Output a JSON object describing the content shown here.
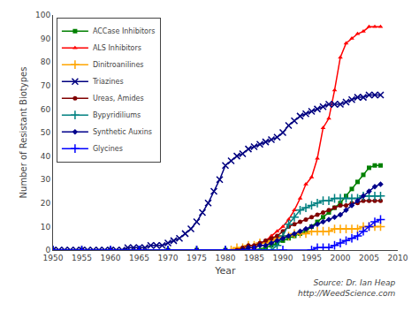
{
  "chart_data": {
    "type": "line",
    "xlabel": "Year",
    "ylabel": "Number of Resistant Biotypes",
    "annotation": "Source: Dr. Ian Heap\nhttp://WeedScience.com",
    "xlim": [
      1950,
      2010
    ],
    "ylim": [
      0,
      100
    ],
    "xticks": [
      1950,
      1955,
      1960,
      1965,
      1970,
      1975,
      1980,
      1985,
      1990,
      1995,
      2000,
      2005,
      2010
    ],
    "yticks": [
      0,
      10,
      20,
      30,
      40,
      50,
      60,
      70,
      80,
      90,
      100
    ],
    "grid": false,
    "legend": "upper left",
    "series": [
      {
        "name": "ACCase Inhibitors",
        "color": "#008000",
        "marker": "square",
        "x": [
          1950,
          1955,
          1960,
          1965,
          1970,
          1975,
          1980,
          1985,
          1987,
          1988,
          1989,
          1990,
          1991,
          1992,
          1993,
          1994,
          1995,
          1996,
          1997,
          1998,
          1999,
          2000,
          2001,
          2002,
          2003,
          2004,
          2005,
          2006,
          2007
        ],
        "values": [
          0,
          0,
          0,
          0,
          0,
          0,
          0,
          0,
          1,
          2,
          3,
          4,
          5,
          6,
          7,
          8,
          10,
          12,
          14,
          16,
          18,
          20,
          23,
          26,
          29,
          32,
          35,
          36,
          36
        ]
      },
      {
        "name": "ALS Inhibitors",
        "color": "#ff0000",
        "marker": "triangle",
        "x": [
          1950,
          1955,
          1960,
          1965,
          1970,
          1975,
          1980,
          1985,
          1986,
          1987,
          1988,
          1989,
          1990,
          1991,
          1992,
          1993,
          1994,
          1995,
          1996,
          1997,
          1998,
          1999,
          2000,
          2001,
          2002,
          2003,
          2004,
          2005,
          2006,
          2007
        ],
        "values": [
          0,
          0,
          0,
          0,
          0,
          0,
          0,
          1,
          2,
          4,
          6,
          8,
          10,
          13,
          17,
          22,
          28,
          31,
          39,
          52,
          56,
          68,
          82,
          88,
          90,
          92,
          93,
          95,
          95,
          95
        ]
      },
      {
        "name": "Dinitroanilines",
        "color": "#ffa500",
        "marker": "plus",
        "x": [
          1950,
          1955,
          1960,
          1965,
          1970,
          1975,
          1980,
          1981,
          1982,
          1983,
          1984,
          1985,
          1986,
          1987,
          1988,
          1989,
          1990,
          1991,
          1992,
          1993,
          1994,
          1995,
          1996,
          1997,
          1998,
          1999,
          2000,
          2001,
          2002,
          2003,
          2004,
          2005,
          2006,
          2007
        ],
        "values": [
          0,
          0,
          0,
          0,
          0,
          0,
          0,
          0,
          1,
          1,
          2,
          2,
          3,
          3,
          4,
          5,
          6,
          6,
          7,
          7,
          7,
          8,
          8,
          8,
          8,
          9,
          9,
          9,
          9,
          9,
          10,
          10,
          10,
          10
        ]
      },
      {
        "name": "Triazines",
        "color": "#000080",
        "marker": "x",
        "x": [
          1950,
          1951,
          1952,
          1953,
          1954,
          1955,
          1956,
          1957,
          1958,
          1959,
          1960,
          1961,
          1962,
          1963,
          1964,
          1965,
          1966,
          1967,
          1968,
          1969,
          1970,
          1971,
          1972,
          1973,
          1974,
          1975,
          1976,
          1977,
          1978,
          1979,
          1980,
          1981,
          1982,
          1983,
          1984,
          1985,
          1986,
          1987,
          1988,
          1989,
          1990,
          1991,
          1992,
          1993,
          1994,
          1995,
          1996,
          1997,
          1998,
          1999,
          2000,
          2001,
          2002,
          2003,
          2004,
          2005,
          2006,
          2007
        ],
        "values": [
          0,
          0,
          0,
          0,
          0,
          0,
          0,
          0,
          0,
          0,
          0,
          0,
          0,
          1,
          1,
          1,
          1,
          2,
          2,
          2,
          3,
          4,
          5,
          7,
          9,
          12,
          16,
          20,
          25,
          30,
          36,
          38,
          40,
          41,
          43,
          44,
          45,
          46,
          47,
          48,
          50,
          53,
          55,
          57,
          58,
          59,
          60,
          61,
          62,
          62,
          62,
          63,
          64,
          65,
          65,
          66,
          66,
          66
        ]
      },
      {
        "name": "Ureas, Amides",
        "color": "#800000",
        "marker": "circle",
        "x": [
          1950,
          1955,
          1960,
          1965,
          1970,
          1975,
          1980,
          1982,
          1983,
          1984,
          1985,
          1986,
          1987,
          1988,
          1989,
          1990,
          1991,
          1992,
          1993,
          1994,
          1995,
          1996,
          1997,
          1998,
          1999,
          2000,
          2001,
          2002,
          2003,
          2004,
          2005,
          2006,
          2007
        ],
        "values": [
          0,
          0,
          0,
          0,
          0,
          0,
          0,
          0,
          1,
          2,
          2,
          3,
          4,
          5,
          6,
          8,
          10,
          11,
          12,
          13,
          14,
          15,
          16,
          17,
          18,
          19,
          19,
          20,
          20,
          21,
          21,
          21,
          21
        ]
      },
      {
        "name": "Bypyridiliums",
        "color": "#008080",
        "marker": "plus",
        "x": [
          1950,
          1955,
          1960,
          1965,
          1970,
          1975,
          1980,
          1985,
          1986,
          1987,
          1988,
          1989,
          1990,
          1991,
          1992,
          1993,
          1994,
          1995,
          1996,
          1997,
          1998,
          1999,
          2000,
          2001,
          2002,
          2003,
          2004,
          2005,
          2006,
          2007
        ],
        "values": [
          0,
          0,
          0,
          0,
          0,
          0,
          0,
          0,
          0,
          0,
          0,
          2,
          6,
          11,
          14,
          17,
          18,
          19,
          20,
          21,
          21,
          22,
          22,
          22,
          22,
          22,
          23,
          23,
          23,
          23
        ]
      },
      {
        "name": "Synthetic Auxins",
        "color": "#00008b",
        "marker": "diamond",
        "x": [
          1950,
          1955,
          1960,
          1965,
          1970,
          1975,
          1980,
          1983,
          1984,
          1985,
          1986,
          1987,
          1988,
          1989,
          1990,
          1991,
          1992,
          1993,
          1994,
          1995,
          1996,
          1997,
          1998,
          1999,
          2000,
          2001,
          2002,
          2003,
          2004,
          2005,
          2006,
          2007
        ],
        "values": [
          0,
          0,
          0,
          0,
          0,
          0,
          0,
          0,
          1,
          1,
          2,
          2,
          3,
          4,
          5,
          6,
          7,
          8,
          9,
          10,
          11,
          12,
          13,
          14,
          15,
          17,
          19,
          21,
          23,
          25,
          27,
          28
        ]
      },
      {
        "name": "Glycines",
        "color": "#0000ff",
        "marker": "plus",
        "x": [
          1950,
          1955,
          1960,
          1965,
          1970,
          1975,
          1980,
          1985,
          1990,
          1995,
          1996,
          1997,
          1998,
          1999,
          2000,
          2001,
          2002,
          2003,
          2004,
          2005,
          2006,
          2007
        ],
        "values": [
          0,
          0,
          0,
          0,
          0,
          0,
          0,
          0,
          0,
          0,
          1,
          1,
          1,
          2,
          3,
          4,
          5,
          6,
          8,
          10,
          12,
          13
        ]
      }
    ]
  }
}
